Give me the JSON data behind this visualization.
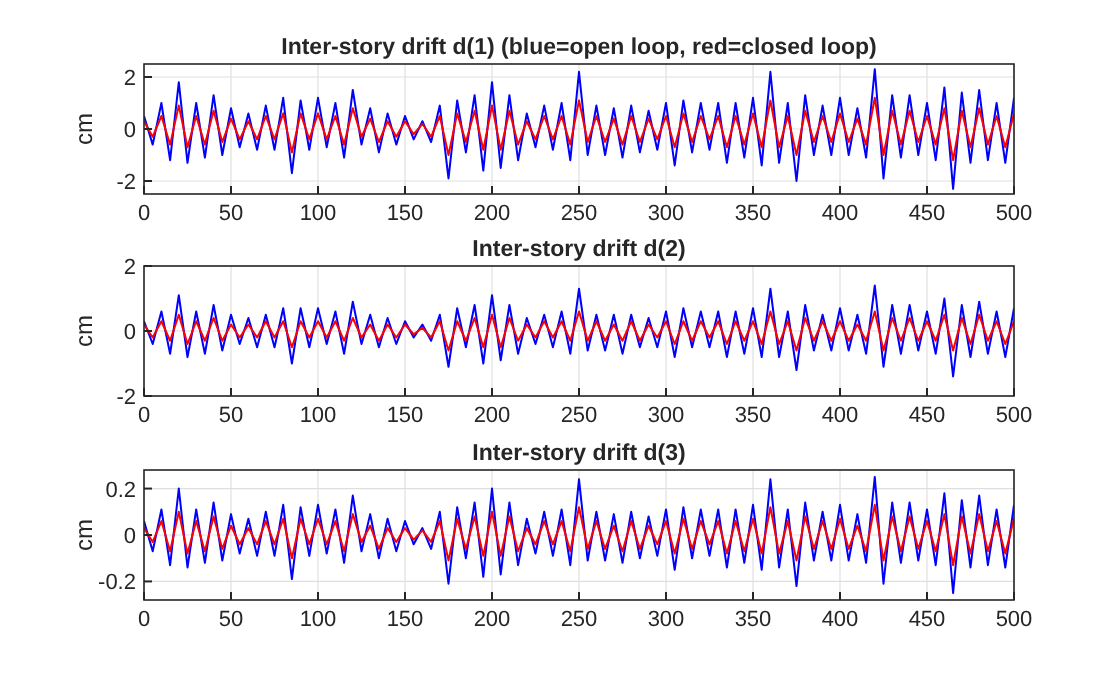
{
  "chart_data": [
    {
      "type": "line",
      "title": "Inter-story drift d(1) (blue=open loop, red=closed loop)",
      "ylabel": "cm",
      "xlim": [
        0,
        500
      ],
      "xticks": [
        0,
        50,
        100,
        150,
        200,
        250,
        300,
        350,
        400,
        450,
        500
      ],
      "ylim": [
        -2.5,
        2.5
      ],
      "yticks": [
        -2,
        0,
        2
      ],
      "grid": true,
      "line_style": "solid",
      "marker": "none",
      "x": [
        0,
        5,
        10,
        15,
        20,
        25,
        30,
        35,
        40,
        45,
        50,
        55,
        60,
        65,
        70,
        75,
        80,
        85,
        90,
        95,
        100,
        105,
        110,
        115,
        120,
        125,
        130,
        135,
        140,
        145,
        150,
        155,
        160,
        165,
        170,
        175,
        180,
        185,
        190,
        195,
        200,
        205,
        210,
        215,
        220,
        225,
        230,
        235,
        240,
        245,
        250,
        255,
        260,
        265,
        270,
        275,
        280,
        285,
        290,
        295,
        300,
        305,
        310,
        315,
        320,
        325,
        330,
        335,
        340,
        345,
        350,
        355,
        360,
        365,
        370,
        375,
        380,
        385,
        390,
        395,
        400,
        405,
        410,
        415,
        420,
        425,
        430,
        435,
        440,
        445,
        450,
        455,
        460,
        465,
        470,
        475,
        480,
        485,
        490,
        495,
        500
      ],
      "series": [
        {
          "color": "#0000ff",
          "values": [
            0.5,
            -0.6,
            1.0,
            -1.2,
            1.8,
            -1.3,
            1.0,
            -1.1,
            1.3,
            -1.0,
            0.8,
            -0.7,
            0.6,
            -0.8,
            0.9,
            -0.8,
            1.2,
            -1.7,
            1.1,
            -0.8,
            1.2,
            -0.7,
            1.0,
            -1.1,
            1.5,
            -0.6,
            0.8,
            -0.9,
            0.6,
            -0.6,
            0.5,
            -0.4,
            0.3,
            -0.5,
            0.9,
            -1.9,
            1.1,
            -0.9,
            1.3,
            -1.6,
            1.8,
            -1.5,
            1.3,
            -1.2,
            0.6,
            -0.7,
            0.9,
            -0.8,
            1.0,
            -1.2,
            2.2,
            -1.0,
            0.9,
            -1.0,
            0.8,
            -1.1,
            0.9,
            -0.9,
            0.7,
            -0.8,
            1.0,
            -1.4,
            1.1,
            -0.9,
            1.0,
            -0.8,
            1.0,
            -1.3,
            1.0,
            -1.1,
            1.2,
            -1.4,
            2.2,
            -1.3,
            1.0,
            -2.0,
            1.3,
            -1.0,
            0.9,
            -1.0,
            1.2,
            -1.0,
            0.8,
            -1.1,
            2.3,
            -1.9,
            1.3,
            -1.1,
            1.3,
            -1.0,
            1.0,
            -1.2,
            1.6,
            -2.3,
            1.4,
            -1.3,
            1.5,
            -1.2,
            1.0,
            -1.3,
            1.2
          ]
        },
        {
          "color": "#ff0000",
          "values": [
            0.3,
            -0.3,
            0.5,
            -0.6,
            0.9,
            -0.7,
            0.5,
            -0.6,
            0.7,
            -0.5,
            0.4,
            -0.4,
            0.3,
            -0.4,
            0.5,
            -0.4,
            0.6,
            -0.9,
            0.6,
            -0.4,
            0.6,
            -0.4,
            0.5,
            -0.6,
            0.8,
            -0.3,
            0.4,
            -0.5,
            0.3,
            -0.3,
            0.3,
            -0.2,
            0.2,
            -0.3,
            0.5,
            -1.0,
            0.6,
            -0.5,
            0.7,
            -0.8,
            0.9,
            -0.8,
            0.7,
            -0.6,
            0.3,
            -0.4,
            0.5,
            -0.4,
            0.5,
            -0.6,
            1.1,
            -0.5,
            0.5,
            -0.5,
            0.4,
            -0.6,
            0.5,
            -0.5,
            0.4,
            -0.4,
            0.5,
            -0.7,
            0.6,
            -0.5,
            0.5,
            -0.4,
            0.5,
            -0.7,
            0.5,
            -0.6,
            0.6,
            -0.7,
            1.1,
            -0.7,
            0.5,
            -1.0,
            0.7,
            -0.5,
            0.5,
            -0.5,
            0.6,
            -0.5,
            0.4,
            -0.6,
            1.2,
            -1.0,
            0.7,
            -0.6,
            0.7,
            -0.5,
            0.5,
            -0.6,
            0.8,
            -1.2,
            0.7,
            -0.7,
            0.8,
            -0.6,
            0.5,
            -0.7,
            0.6
          ]
        }
      ]
    },
    {
      "type": "line",
      "title": "Inter-story drift d(2)",
      "ylabel": "cm",
      "xlim": [
        0,
        500
      ],
      "xticks": [
        0,
        50,
        100,
        150,
        200,
        250,
        300,
        350,
        400,
        450,
        500
      ],
      "ylim": [
        -2,
        2
      ],
      "yticks": [
        -2,
        0,
        2
      ],
      "grid": true,
      "line_style": "solid",
      "marker": "none",
      "x": [
        0,
        5,
        10,
        15,
        20,
        25,
        30,
        35,
        40,
        45,
        50,
        55,
        60,
        65,
        70,
        75,
        80,
        85,
        90,
        95,
        100,
        105,
        110,
        115,
        120,
        125,
        130,
        135,
        140,
        145,
        150,
        155,
        160,
        165,
        170,
        175,
        180,
        185,
        190,
        195,
        200,
        205,
        210,
        215,
        220,
        225,
        230,
        235,
        240,
        245,
        250,
        255,
        260,
        265,
        270,
        275,
        280,
        285,
        290,
        295,
        300,
        305,
        310,
        315,
        320,
        325,
        330,
        335,
        340,
        345,
        350,
        355,
        360,
        365,
        370,
        375,
        380,
        385,
        390,
        395,
        400,
        405,
        410,
        415,
        420,
        425,
        430,
        435,
        440,
        445,
        450,
        455,
        460,
        465,
        470,
        475,
        480,
        485,
        490,
        495,
        500
      ],
      "series": [
        {
          "color": "#0000ff",
          "values": [
            0.3,
            -0.4,
            0.6,
            -0.7,
            1.1,
            -0.8,
            0.6,
            -0.7,
            0.8,
            -0.6,
            0.5,
            -0.4,
            0.4,
            -0.5,
            0.5,
            -0.5,
            0.7,
            -1.0,
            0.7,
            -0.5,
            0.7,
            -0.4,
            0.6,
            -0.7,
            0.9,
            -0.4,
            0.5,
            -0.5,
            0.4,
            -0.4,
            0.3,
            -0.2,
            0.2,
            -0.3,
            0.5,
            -1.1,
            0.7,
            -0.5,
            0.8,
            -1.0,
            1.1,
            -0.9,
            0.8,
            -0.7,
            0.4,
            -0.4,
            0.5,
            -0.5,
            0.6,
            -0.7,
            1.3,
            -0.6,
            0.5,
            -0.6,
            0.5,
            -0.7,
            0.5,
            -0.5,
            0.4,
            -0.5,
            0.6,
            -0.8,
            0.7,
            -0.5,
            0.6,
            -0.5,
            0.6,
            -0.8,
            0.6,
            -0.7,
            0.7,
            -0.8,
            1.3,
            -0.8,
            0.6,
            -1.2,
            0.8,
            -0.6,
            0.5,
            -0.6,
            0.7,
            -0.6,
            0.5,
            -0.7,
            1.4,
            -1.1,
            0.8,
            -0.7,
            0.8,
            -0.6,
            0.6,
            -0.7,
            1.0,
            -1.4,
            0.8,
            -0.8,
            0.9,
            -0.7,
            0.6,
            -0.8,
            0.7
          ]
        },
        {
          "color": "#ff0000",
          "values": [
            0.2,
            -0.2,
            0.3,
            -0.3,
            0.5,
            -0.4,
            0.3,
            -0.3,
            0.4,
            -0.3,
            0.2,
            -0.2,
            0.2,
            -0.2,
            0.3,
            -0.2,
            0.3,
            -0.5,
            0.3,
            -0.2,
            0.3,
            -0.2,
            0.3,
            -0.3,
            0.4,
            -0.2,
            0.2,
            -0.3,
            0.2,
            -0.2,
            0.2,
            -0.1,
            0.1,
            -0.2,
            0.3,
            -0.6,
            0.3,
            -0.3,
            0.4,
            -0.5,
            0.5,
            -0.5,
            0.4,
            -0.3,
            0.2,
            -0.2,
            0.3,
            -0.2,
            0.3,
            -0.3,
            0.6,
            -0.3,
            0.3,
            -0.3,
            0.2,
            -0.3,
            0.3,
            -0.3,
            0.2,
            -0.2,
            0.3,
            -0.4,
            0.3,
            -0.3,
            0.3,
            -0.2,
            0.3,
            -0.4,
            0.3,
            -0.3,
            0.3,
            -0.4,
            0.6,
            -0.4,
            0.3,
            -0.6,
            0.4,
            -0.3,
            0.3,
            -0.3,
            0.3,
            -0.3,
            0.2,
            -0.3,
            0.6,
            -0.6,
            0.4,
            -0.3,
            0.4,
            -0.3,
            0.3,
            -0.3,
            0.5,
            -0.6,
            0.4,
            -0.4,
            0.5,
            -0.3,
            0.3,
            -0.4,
            0.3
          ]
        }
      ]
    },
    {
      "type": "line",
      "title": "Inter-story drift d(3)",
      "ylabel": "cm",
      "xlim": [
        0,
        500
      ],
      "xticks": [
        0,
        50,
        100,
        150,
        200,
        250,
        300,
        350,
        400,
        450,
        500
      ],
      "ylim": [
        -0.28,
        0.28
      ],
      "yticks": [
        -0.2,
        0,
        0.2
      ],
      "grid": true,
      "line_style": "solid",
      "marker": "none",
      "x": [
        0,
        5,
        10,
        15,
        20,
        25,
        30,
        35,
        40,
        45,
        50,
        55,
        60,
        65,
        70,
        75,
        80,
        85,
        90,
        95,
        100,
        105,
        110,
        115,
        120,
        125,
        130,
        135,
        140,
        145,
        150,
        155,
        160,
        165,
        170,
        175,
        180,
        185,
        190,
        195,
        200,
        205,
        210,
        215,
        220,
        225,
        230,
        235,
        240,
        245,
        250,
        255,
        260,
        265,
        270,
        275,
        280,
        285,
        290,
        295,
        300,
        305,
        310,
        315,
        320,
        325,
        330,
        335,
        340,
        345,
        350,
        355,
        360,
        365,
        370,
        375,
        380,
        385,
        390,
        395,
        400,
        405,
        410,
        415,
        420,
        425,
        430,
        435,
        440,
        445,
        450,
        455,
        460,
        465,
        470,
        475,
        480,
        485,
        490,
        495,
        500
      ],
      "series": [
        {
          "color": "#0000ff",
          "values": [
            0.06,
            -0.07,
            0.11,
            -0.13,
            0.2,
            -0.14,
            0.11,
            -0.12,
            0.14,
            -0.11,
            0.09,
            -0.08,
            0.07,
            -0.09,
            0.1,
            -0.09,
            0.13,
            -0.19,
            0.12,
            -0.09,
            0.13,
            -0.08,
            0.11,
            -0.12,
            0.17,
            -0.07,
            0.09,
            -0.1,
            0.07,
            -0.07,
            0.06,
            -0.04,
            0.03,
            -0.06,
            0.1,
            -0.21,
            0.12,
            -0.1,
            0.14,
            -0.18,
            0.2,
            -0.17,
            0.14,
            -0.13,
            0.07,
            -0.08,
            0.1,
            -0.09,
            0.11,
            -0.13,
            0.24,
            -0.11,
            0.1,
            -0.11,
            0.09,
            -0.12,
            0.1,
            -0.1,
            0.08,
            -0.09,
            0.11,
            -0.15,
            0.12,
            -0.1,
            0.11,
            -0.09,
            0.11,
            -0.14,
            0.11,
            -0.12,
            0.13,
            -0.15,
            0.24,
            -0.14,
            0.11,
            -0.22,
            0.14,
            -0.11,
            0.1,
            -0.11,
            0.13,
            -0.11,
            0.09,
            -0.12,
            0.25,
            -0.21,
            0.14,
            -0.12,
            0.14,
            -0.11,
            0.11,
            -0.13,
            0.18,
            -0.25,
            0.15,
            -0.14,
            0.17,
            -0.13,
            0.11,
            -0.14,
            0.13
          ]
        },
        {
          "color": "#ff0000",
          "values": [
            0.03,
            -0.03,
            0.06,
            -0.07,
            0.1,
            -0.08,
            0.06,
            -0.07,
            0.08,
            -0.06,
            0.04,
            -0.04,
            0.03,
            -0.04,
            0.06,
            -0.04,
            0.07,
            -0.1,
            0.07,
            -0.04,
            0.07,
            -0.04,
            0.06,
            -0.07,
            0.09,
            -0.03,
            0.04,
            -0.06,
            0.03,
            -0.03,
            0.03,
            -0.02,
            0.02,
            -0.03,
            0.06,
            -0.11,
            0.07,
            -0.06,
            0.08,
            -0.09,
            0.1,
            -0.09,
            0.08,
            -0.07,
            0.03,
            -0.04,
            0.06,
            -0.04,
            0.06,
            -0.07,
            0.12,
            -0.06,
            0.06,
            -0.06,
            0.04,
            -0.07,
            0.06,
            -0.06,
            0.04,
            -0.04,
            0.06,
            -0.08,
            0.07,
            -0.06,
            0.06,
            -0.04,
            0.06,
            -0.08,
            0.06,
            -0.07,
            0.07,
            -0.08,
            0.12,
            -0.08,
            0.06,
            -0.11,
            0.08,
            -0.06,
            0.06,
            -0.06,
            0.07,
            -0.06,
            0.04,
            -0.07,
            0.13,
            -0.11,
            0.08,
            -0.07,
            0.08,
            -0.06,
            0.06,
            -0.07,
            0.09,
            -0.13,
            0.08,
            -0.08,
            0.09,
            -0.07,
            0.06,
            -0.08,
            0.07
          ]
        }
      ]
    }
  ]
}
